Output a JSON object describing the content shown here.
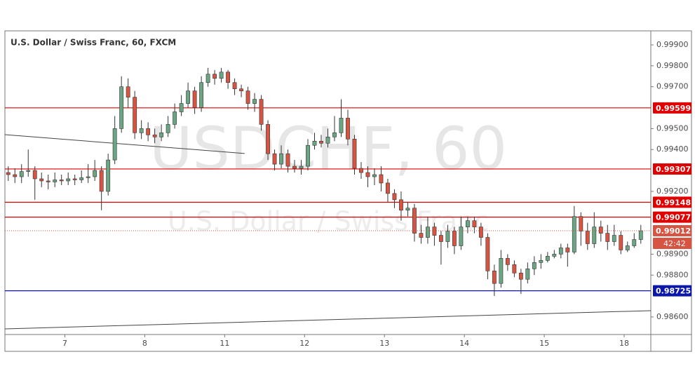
{
  "chart_data": {
    "type": "candlestick",
    "title": "U.S. Dollar / Swiss Franc, 60, FXCM",
    "watermark": {
      "symbol": "USDCHF, 60",
      "description": "U.S. Dollar / Swiss Franc"
    },
    "x": [
      1,
      3,
      5,
      7,
      9,
      11,
      13,
      15,
      17,
      19,
      21,
      23,
      25,
      27,
      29,
      31,
      33,
      35,
      37,
      39,
      41,
      43,
      45,
      47,
      49,
      51,
      53,
      55,
      57,
      59,
      61,
      63,
      65,
      67,
      69,
      71,
      73,
      75,
      77,
      79,
      81,
      83,
      85,
      87,
      89,
      91,
      93,
      95,
      97,
      99,
      101,
      103,
      105,
      107,
      109,
      111,
      113,
      115,
      117,
      119,
      121,
      123,
      125,
      127,
      129,
      131,
      133,
      135,
      137,
      139,
      141,
      143,
      145,
      147,
      149,
      151,
      153,
      155,
      157,
      159,
      161,
      163,
      165,
      167,
      169,
      171,
      173,
      175,
      177,
      179,
      181,
      183,
      185,
      187,
      189,
      191
    ],
    "open": [
      0.9929,
      0.9928,
      0.9927,
      0.99295,
      0.993,
      0.9926,
      0.9925,
      0.99245,
      0.99255,
      0.9925,
      0.9926,
      0.99255,
      0.99265,
      0.9927,
      0.993,
      0.992,
      0.9935,
      0.995,
      0.997,
      0.9965,
      0.9948,
      0.995,
      0.9947,
      0.9946,
      0.9948,
      0.9952,
      0.9958,
      0.9962,
      0.9968,
      0.996,
      0.9972,
      0.9976,
      0.9974,
      0.9977,
      0.9972,
      0.9969,
      0.9968,
      0.9962,
      0.9964,
      0.9952,
      0.9938,
      0.9933,
      0.9938,
      0.9932,
      0.9931,
      0.9932,
      0.9942,
      0.9944,
      0.9943,
      0.9946,
      0.9948,
      0.9955,
      0.9945,
      0.9931,
      0.9929,
      0.9927,
      0.9928,
      0.9924,
      0.9919,
      0.9916,
      0.9911,
      0.9912,
      0.99,
      0.9898,
      0.9903,
      0.9899,
      0.9896,
      0.9901,
      0.9894,
      0.9903,
      0.9906,
      0.9903,
      0.9898,
      0.9882,
      0.9876,
      0.9888,
      0.9885,
      0.9881,
      0.9878,
      0.9883,
      0.9886,
      0.9887,
      0.9889,
      0.989,
      0.9893,
      0.9891,
      0.9908,
      0.9901,
      0.9895,
      0.9903,
      0.99,
      0.9896,
      0.9899,
      0.9892,
      0.9894,
      0.9897
    ],
    "high": [
      0.9932,
      0.9931,
      0.9933,
      0.994,
      0.9932,
      0.9929,
      0.9928,
      0.9929,
      0.9928,
      0.9929,
      0.9928,
      0.993,
      0.9933,
      0.9935,
      0.9932,
      0.9938,
      0.9956,
      0.9975,
      0.9974,
      0.9968,
      0.9954,
      0.9953,
      0.995,
      0.9952,
      0.9956,
      0.9962,
      0.9966,
      0.9972,
      0.997,
      0.9975,
      0.9979,
      0.9978,
      0.9979,
      0.9978,
      0.9974,
      0.9971,
      0.997,
      0.9967,
      0.9966,
      0.9954,
      0.994,
      0.9942,
      0.994,
      0.9935,
      0.9935,
      0.9945,
      0.9948,
      0.9947,
      0.995,
      0.9956,
      0.9964,
      0.9959,
      0.9947,
      0.9934,
      0.9932,
      0.9931,
      0.9932,
      0.9926,
      0.9921,
      0.992,
      0.9915,
      0.9914,
      0.9904,
      0.9908,
      0.9905,
      0.9901,
      0.9904,
      0.9903,
      0.9908,
      0.9908,
      0.9908,
      0.9905,
      0.99,
      0.9885,
      0.9892,
      0.989,
      0.9887,
      0.9883,
      0.9886,
      0.9889,
      0.989,
      0.9891,
      0.9892,
      0.9895,
      0.9895,
      0.9913,
      0.991,
      0.9905,
      0.991,
      0.9906,
      0.9904,
      0.9904,
      0.9901,
      0.9896,
      0.99,
      0.9904
    ],
    "low": [
      0.9925,
      0.9924,
      0.9924,
      0.9927,
      0.9916,
      0.9922,
      0.9921,
      0.9922,
      0.9923,
      0.9923,
      0.9923,
      0.9924,
      0.9924,
      0.9925,
      0.9911,
      0.9918,
      0.9933,
      0.9948,
      0.996,
      0.9945,
      0.9945,
      0.9944,
      0.9943,
      0.9944,
      0.9946,
      0.995,
      0.9956,
      0.996,
      0.9957,
      0.9958,
      0.997,
      0.9971,
      0.9972,
      0.9969,
      0.9966,
      0.9965,
      0.9959,
      0.9958,
      0.9949,
      0.9935,
      0.993,
      0.9931,
      0.9929,
      0.9929,
      0.9928,
      0.993,
      0.994,
      0.9941,
      0.9941,
      0.9944,
      0.9946,
      0.9942,
      0.9928,
      0.9926,
      0.9922,
      0.9923,
      0.992,
      0.9915,
      0.9912,
      0.9906,
      0.9908,
      0.9896,
      0.9895,
      0.9895,
      0.9894,
      0.9885,
      0.9893,
      0.989,
      0.9892,
      0.99,
      0.99,
      0.9894,
      0.9878,
      0.987,
      0.9874,
      0.9882,
      0.9879,
      0.9871,
      0.9876,
      0.988,
      0.9883,
      0.9886,
      0.9888,
      0.9888,
      0.9884,
      0.989,
      0.9894,
      0.9892,
      0.9893,
      0.9896,
      0.9892,
      0.9894,
      0.989,
      0.9891,
      0.9893,
      0.9895
    ],
    "close": [
      0.9928,
      0.9927,
      0.99295,
      0.993,
      0.9926,
      0.9925,
      0.99245,
      0.99255,
      0.9925,
      0.9926,
      0.99255,
      0.99265,
      0.9927,
      0.993,
      0.992,
      0.9935,
      0.995,
      0.997,
      0.9965,
      0.9948,
      0.995,
      0.9947,
      0.9946,
      0.9948,
      0.9952,
      0.9958,
      0.9962,
      0.9968,
      0.996,
      0.9972,
      0.9976,
      0.9974,
      0.9977,
      0.9972,
      0.9969,
      0.9968,
      0.9962,
      0.9964,
      0.9952,
      0.9938,
      0.9933,
      0.9938,
      0.9932,
      0.9931,
      0.9932,
      0.9942,
      0.9944,
      0.9943,
      0.9946,
      0.9948,
      0.9955,
      0.9945,
      0.9931,
      0.9929,
      0.9927,
      0.9928,
      0.9924,
      0.9919,
      0.9916,
      0.9911,
      0.9912,
      0.99,
      0.9898,
      0.9903,
      0.9899,
      0.9896,
      0.9901,
      0.9894,
      0.9903,
      0.9906,
      0.9903,
      0.9898,
      0.9882,
      0.9876,
      0.9888,
      0.9885,
      0.9881,
      0.9878,
      0.9883,
      0.9886,
      0.9887,
      0.9889,
      0.989,
      0.9893,
      0.9891,
      0.9908,
      0.9901,
      0.9895,
      0.9903,
      0.99,
      0.9896,
      0.9899,
      0.9892,
      0.9894,
      0.9897,
      0.99012
    ],
    "up_color": "#6ba583",
    "down_color": "#d75442",
    "wick_color": "#333333",
    "xlim": [
      0,
      194
    ],
    "xticks": [
      {
        "value": 18,
        "label": "7"
      },
      {
        "value": 42,
        "label": "8"
      },
      {
        "value": 66,
        "label": "11"
      },
      {
        "value": 90,
        "label": "12"
      },
      {
        "value": 114,
        "label": "13"
      },
      {
        "value": 138,
        "label": "14"
      },
      {
        "value": 162,
        "label": "15"
      },
      {
        "value": 186,
        "label": "18"
      }
    ],
    "ylim": [
      0.98516,
      0.99967
    ],
    "yticks": [
      {
        "value": 0.999,
        "label": "0.99900"
      },
      {
        "value": 0.998,
        "label": "0.99800"
      },
      {
        "value": 0.997,
        "label": "0.99700"
      },
      {
        "value": 0.995,
        "label": "0.99500"
      },
      {
        "value": 0.994,
        "label": "0.99400"
      },
      {
        "value": 0.992,
        "label": "0.99200"
      },
      {
        "value": 0.989,
        "label": "0.98900"
      },
      {
        "value": 0.988,
        "label": "0.98800"
      },
      {
        "value": 0.986,
        "label": "0.98600"
      }
    ],
    "levels": [
      {
        "value": 0.99599,
        "color": "#e00000"
      },
      {
        "value": 0.99307,
        "color": "#e00000"
      },
      {
        "value": 0.99148,
        "color": "#e00000"
      },
      {
        "value": 0.99077,
        "color": "#e00000"
      },
      {
        "value": 0.98725,
        "color": "#0a17a8"
      }
    ],
    "last_price": {
      "value": 0.99012,
      "color": "#d75442",
      "countdown": "42:42"
    },
    "trendlines": [
      {
        "x": [
          0,
          72
        ],
        "y": [
          0.99471,
          0.99381
        ]
      },
      {
        "x": [
          0,
          194
        ],
        "y": [
          0.98543,
          0.9863
        ]
      }
    ]
  }
}
